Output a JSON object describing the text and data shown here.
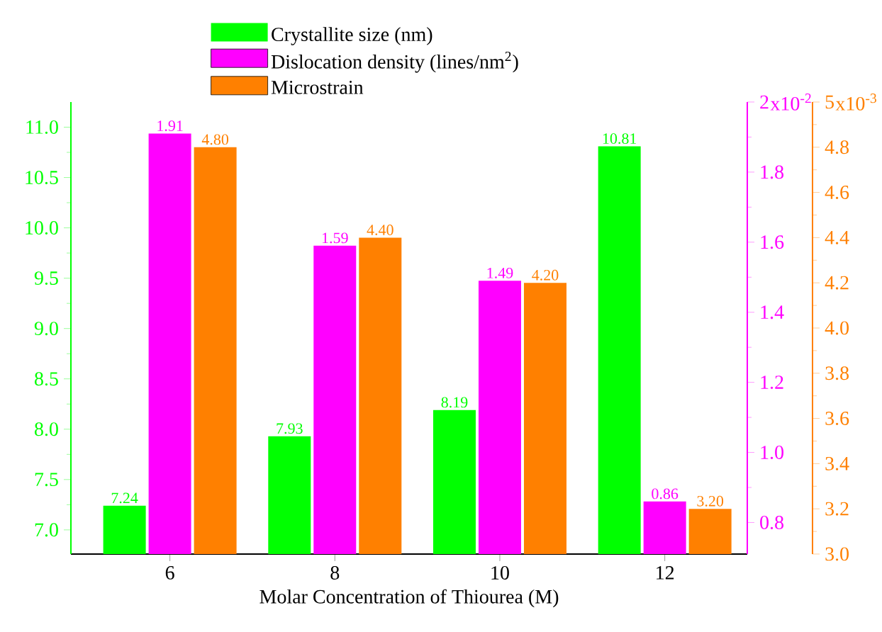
{
  "chart_data": {
    "type": "bar",
    "xlabel": "Molar Concentration of Thiourea (M)",
    "categories": [
      "6",
      "8",
      "10",
      "12"
    ],
    "series": [
      {
        "name": "Crystallite size (nm)",
        "color": "#00ff00",
        "values": [
          7.24,
          7.93,
          8.19,
          10.81
        ],
        "value_labels": [
          "7.24",
          "7.93",
          "8.19",
          "10.81"
        ]
      },
      {
        "name": "Dislocation density (lines/nm$^{2}$)",
        "color": "#ff00ff",
        "values": [
          1.91,
          1.59,
          1.49,
          0.86
        ],
        "value_labels": [
          "1.91",
          "1.59",
          "1.49",
          "0.86"
        ],
        "axis": "y2"
      },
      {
        "name": "Microstrain",
        "color": "#ff8000",
        "values": [
          4.8,
          4.4,
          4.2,
          3.2
        ],
        "value_labels": [
          "4.80",
          "4.40",
          "4.20",
          "3.20"
        ],
        "axis": "y3"
      }
    ],
    "ylim": [
      6.76,
      11.25
    ],
    "yticks": [
      {
        "value": 7,
        "label": "7.0"
      },
      {
        "value": 7.5,
        "label": "7.5"
      },
      {
        "value": 8,
        "label": "8.0"
      },
      {
        "value": 8.5,
        "label": "8.5"
      },
      {
        "value": 9,
        "label": "9.0"
      },
      {
        "value": 9.5,
        "label": "9.5"
      },
      {
        "value": 10,
        "label": "10.0"
      },
      {
        "value": 10.5,
        "label": "10.5"
      },
      {
        "value": 11,
        "label": "11.0"
      }
    ],
    "y2lim": [
      0.71,
      2.0
    ],
    "y2ticks": [
      {
        "value": 0.8,
        "label": "0.8"
      },
      {
        "value": 1.0,
        "label": "1.0"
      },
      {
        "value": 1.2,
        "label": "1.2"
      },
      {
        "value": 1.4,
        "label": "1.4"
      },
      {
        "value": 1.6,
        "label": "1.6"
      },
      {
        "value": 1.8,
        "label": "1.8"
      },
      2
    ],
    "y3lim": [
      3.0,
      5.0
    ],
    "y3ticks": [
      {
        "value": 3.0,
        "label": "3.0"
      },
      {
        "value": 3.2,
        "label": "3.2"
      },
      {
        "value": 3.4,
        "label": "3.4"
      },
      {
        "value": 3.6,
        "label": "3.6"
      },
      {
        "value": 3.8,
        "label": "3.8"
      },
      {
        "value": 4.0,
        "label": "4.0"
      },
      {
        "value": 4.2,
        "label": "4.2"
      },
      {
        "value": 4.4,
        "label": "4.4"
      },
      {
        "value": 4.6,
        "label": "4.6"
      },
      {
        "value": 4.8,
        "label": "4.8"
      },
      5
    ],
    "annotations": [
      "x10$^{-2}$",
      "x10$^{-3}$"
    ],
    "legend": "top",
    "grid": false
  }
}
